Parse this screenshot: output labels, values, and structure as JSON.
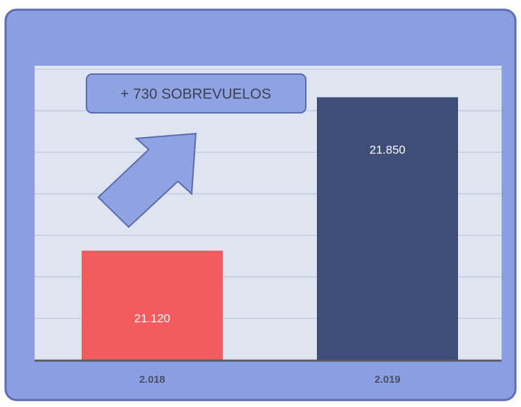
{
  "chart_data": {
    "type": "bar",
    "annotation": "+ 730 SOBREVUELOS",
    "categories": [
      "2.018",
      "2.019"
    ],
    "values": [
      21120,
      21850
    ],
    "value_labels": [
      "21.120",
      "21.850"
    ],
    "colors": [
      "#f25c5f",
      "#3e4d7a"
    ],
    "ylim": [
      20600,
      22000
    ]
  }
}
